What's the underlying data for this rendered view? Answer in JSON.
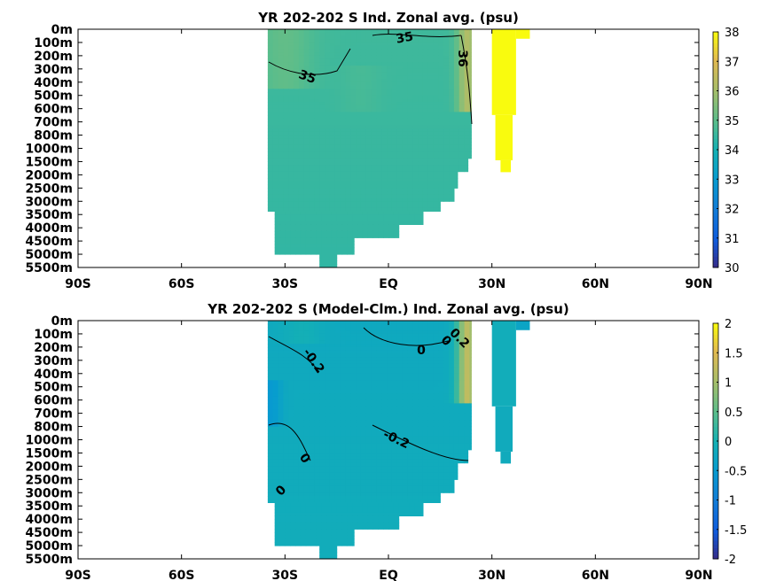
{
  "chart_data": [
    {
      "type": "heatmap",
      "title": "YR 202-202 S Ind. Zonal avg. (psu)",
      "x_ticks": [
        "90S",
        "60S",
        "30S",
        "EQ",
        "30N",
        "60N",
        "90N"
      ],
      "y_ticks": [
        "0m",
        "100m",
        "200m",
        "300m",
        "400m",
        "500m",
        "600m",
        "700m",
        "800m",
        "1000m",
        "1500m",
        "2000m",
        "2500m",
        "3000m",
        "3500m",
        "4000m",
        "4500m",
        "5000m",
        "5500m"
      ],
      "colorbar": {
        "min": 30,
        "max": 38,
        "ticks": [
          "30",
          "31",
          "32",
          "33",
          "34",
          "35",
          "36",
          "37",
          "38"
        ]
      },
      "contour_labels": [
        "35",
        "35",
        "36"
      ],
      "notes": "Indian Ocean zonal-mean salinity: ~34.5-35 psu across 35S-24N; >36 psu near 22N surface; Red Sea/Persian Gulf band ~30-41N saturated at 38."
    },
    {
      "type": "heatmap",
      "title": "YR 202-202 S (Model-Clm.) Ind. Zonal avg. (psu)",
      "x_ticks": [
        "90S",
        "60S",
        "30S",
        "EQ",
        "30N",
        "60N",
        "90N"
      ],
      "y_ticks": [
        "0m",
        "100m",
        "200m",
        "300m",
        "400m",
        "500m",
        "600m",
        "700m",
        "800m",
        "1000m",
        "1500m",
        "2000m",
        "2500m",
        "3000m",
        "3500m",
        "4000m",
        "4500m",
        "5000m",
        "5500m"
      ],
      "colorbar": {
        "min": -2,
        "max": 2,
        "ticks": [
          "2",
          "1.5",
          "1",
          "0.5",
          "0",
          "-0.5",
          "-1",
          "-1.5",
          "-2"
        ]
      },
      "contour_labels": [
        "-0.2",
        "0",
        "0",
        "0.2",
        "-0.2",
        "0",
        "0"
      ],
      "notes": "Model minus climatology salinity difference; mostly -0.4 to 0; positive up to ~1.5 near 22N upper ocean."
    }
  ]
}
